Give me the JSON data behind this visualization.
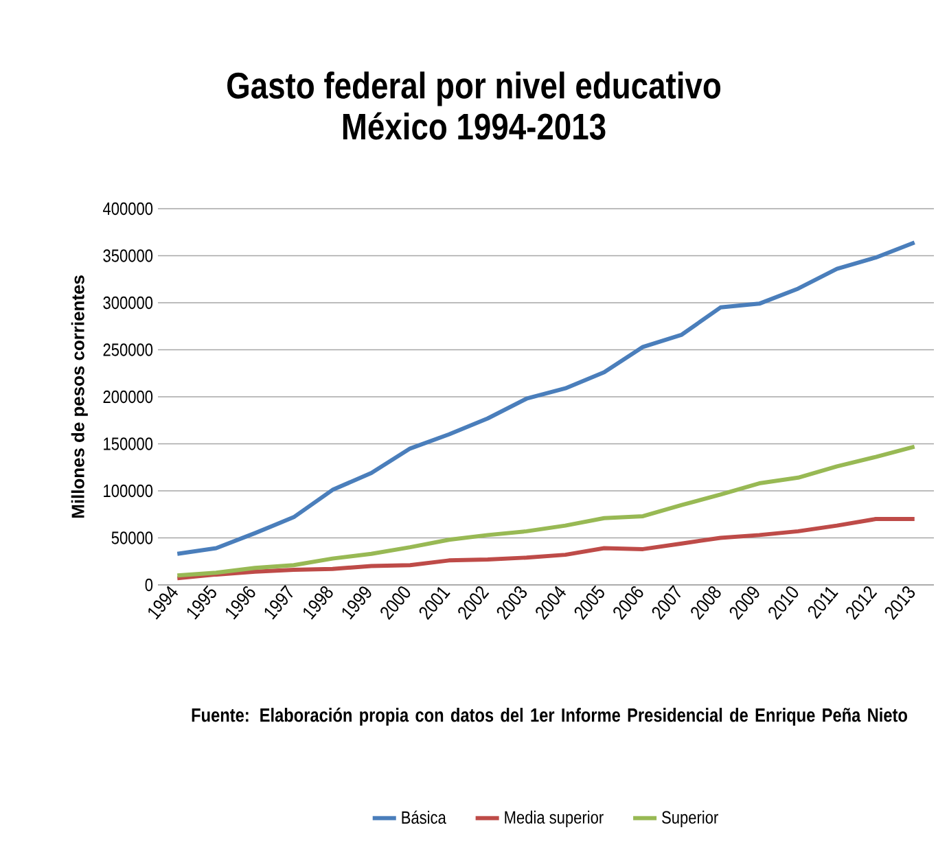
{
  "chart_data": {
    "type": "line",
    "title": "Gasto federal por nivel educativo",
    "subtitle": "México 1994-2013",
    "ylabel": "Millones de pesos corrientes",
    "annotations": [
      "Fuente: Elaboración propia con datos del 1er Informe Presidencial de Enrique Peña Nieto"
    ],
    "categories": [
      "1994",
      "1995",
      "1996",
      "1997",
      "1998",
      "1999",
      "2000",
      "2001",
      "2002",
      "2003",
      "2004",
      "2005",
      "2006",
      "2007",
      "2008",
      "2009",
      "2010",
      "2011",
      "2012",
      "2013"
    ],
    "series": [
      {
        "name": "Básica",
        "color": "#4a7ebb",
        "values": [
          33000,
          39000,
          55000,
          72000,
          101000,
          119000,
          145000,
          160000,
          177000,
          198000,
          209000,
          226000,
          253000,
          266000,
          295000,
          299000,
          315000,
          336000,
          348000,
          364000
        ]
      },
      {
        "name": "Media superior",
        "color": "#be4b48",
        "values": [
          7000,
          11000,
          14000,
          16000,
          17000,
          20000,
          21000,
          26000,
          27000,
          29000,
          32000,
          39000,
          38000,
          44000,
          50000,
          53000,
          57000,
          63000,
          70000,
          70000
        ]
      },
      {
        "name": "Superior",
        "color": "#98b954",
        "values": [
          10000,
          13000,
          18000,
          21000,
          28000,
          33000,
          40000,
          48000,
          53000,
          57000,
          63000,
          71000,
          73000,
          85000,
          96000,
          108000,
          114000,
          126000,
          136000,
          147000
        ]
      }
    ],
    "ylim": [
      0,
      400000
    ],
    "yticks": [
      0,
      50000,
      100000,
      150000,
      200000,
      250000,
      300000,
      350000,
      400000
    ],
    "grid": "y",
    "legend": "bottom",
    "marker": "none",
    "line_style": "solid"
  }
}
